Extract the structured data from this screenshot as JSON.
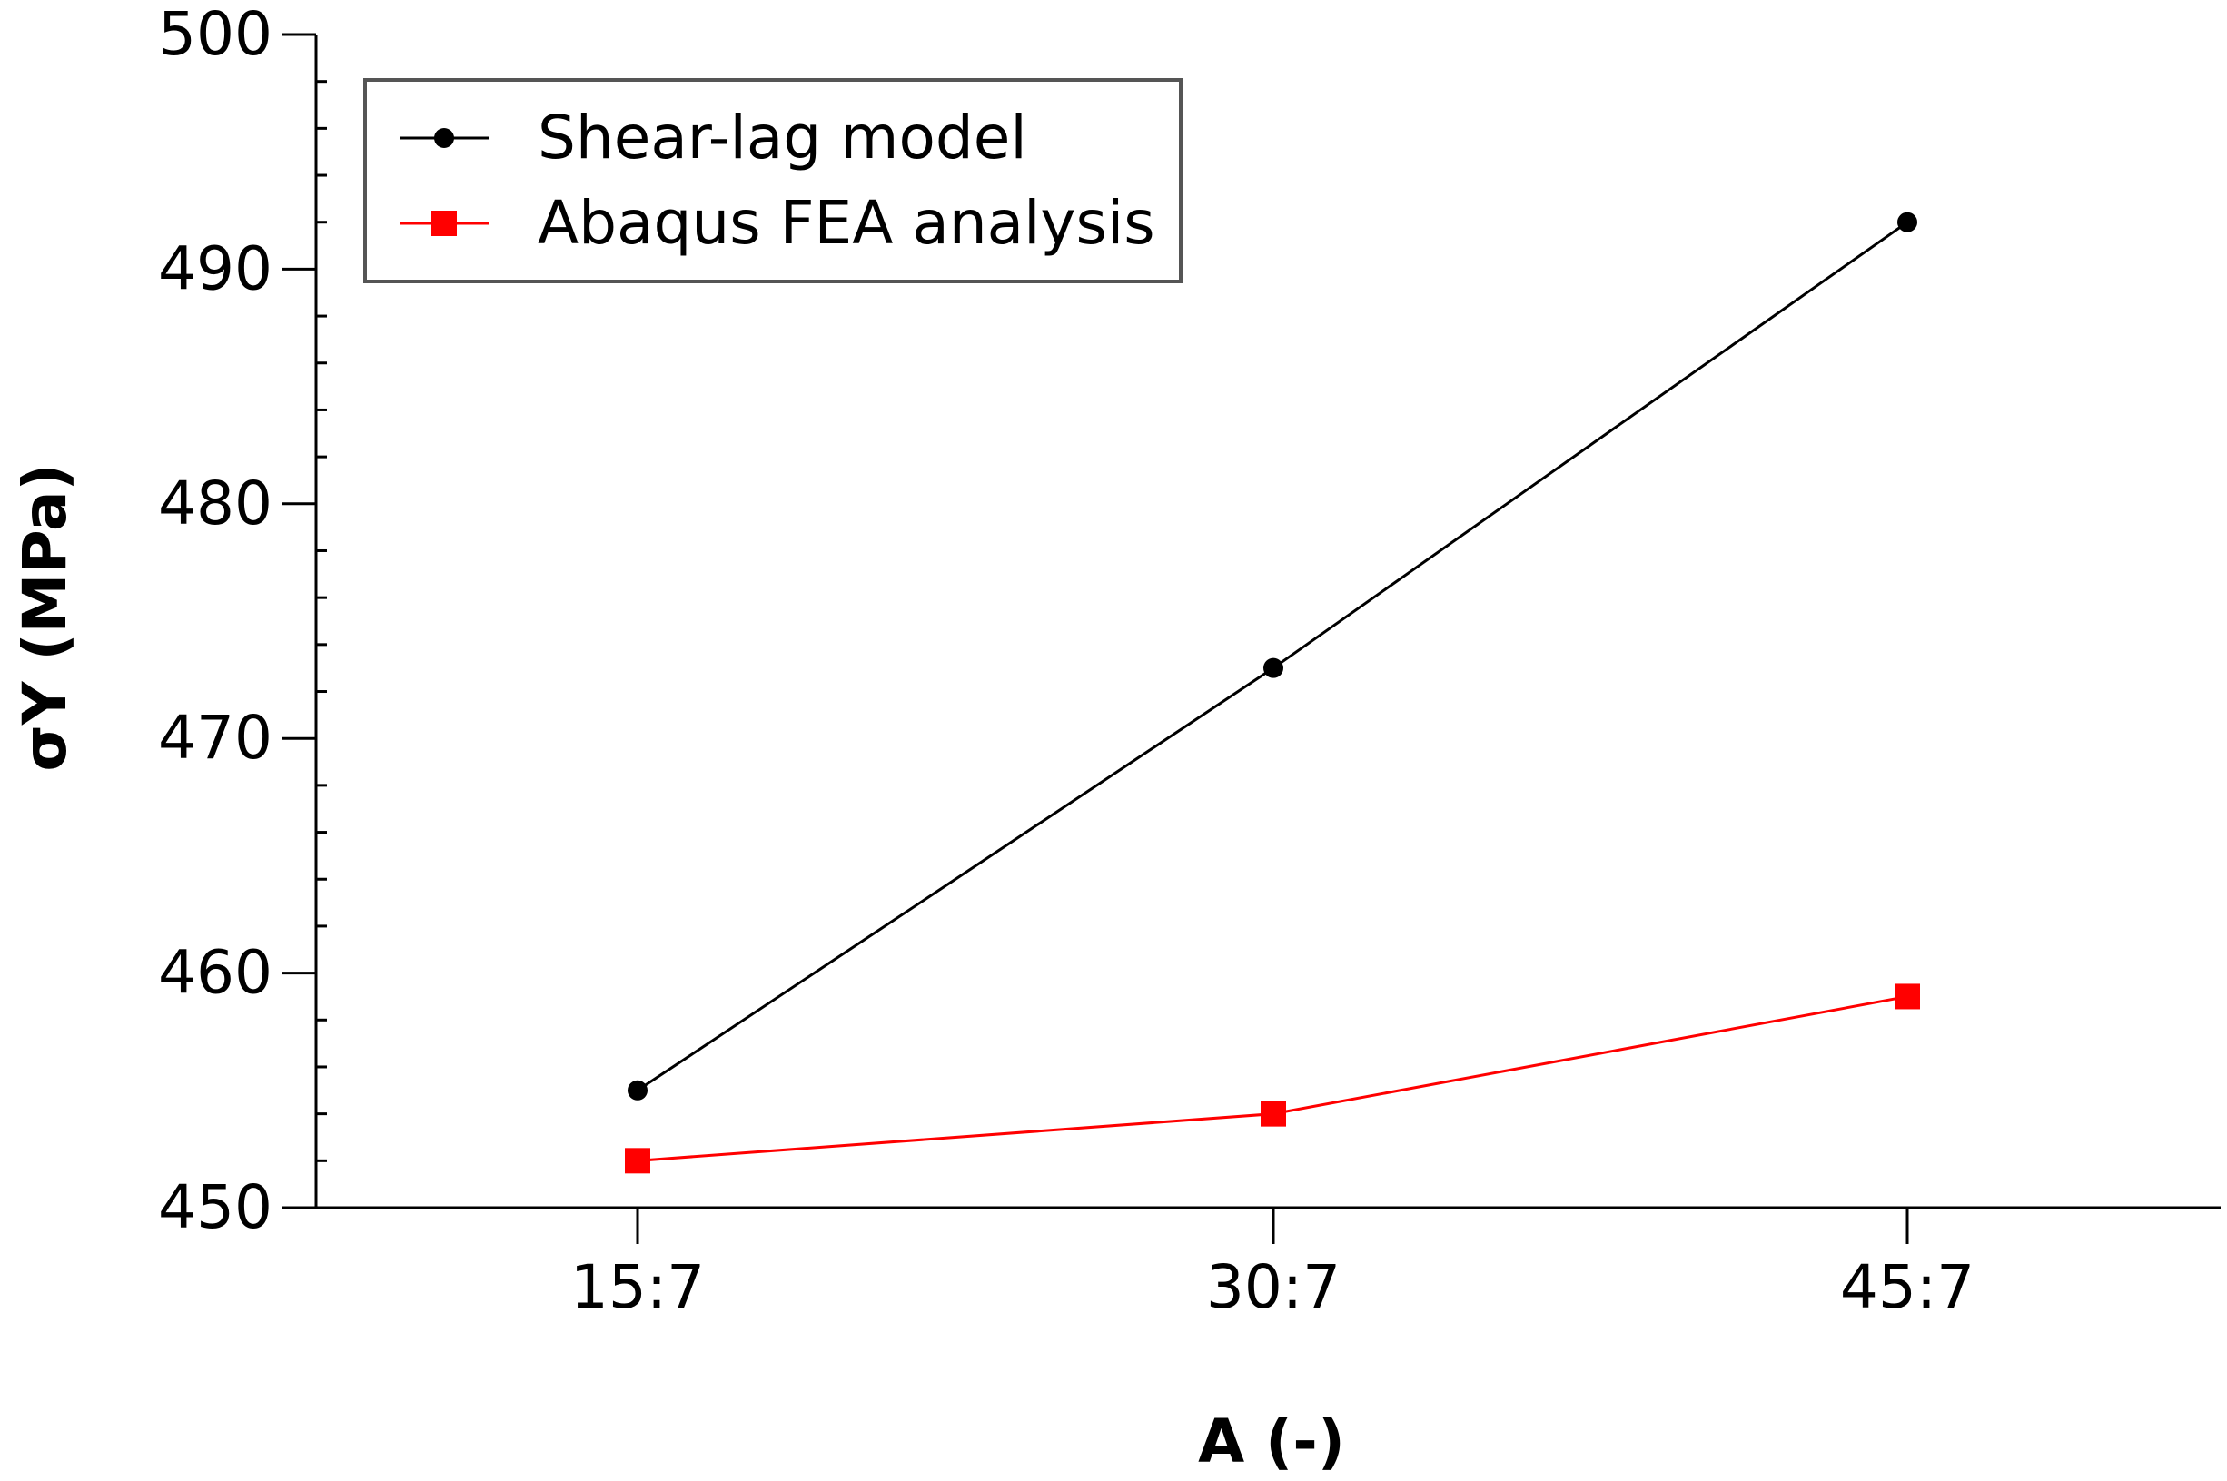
{
  "chart_data": {
    "type": "line",
    "title": "",
    "xlabel": "A (-)",
    "ylabel": "σY (MPa)",
    "categories": [
      "15:7",
      "30:7",
      "45:7"
    ],
    "ylim": [
      450,
      500
    ],
    "yticks": [
      "450",
      "460",
      "470",
      "480",
      "490",
      "500"
    ],
    "grid": false,
    "legend_position": "top-left",
    "series": [
      {
        "name": "Shear-lag model",
        "values": [
          455,
          473,
          492
        ],
        "color": "#000000",
        "marker": "circle"
      },
      {
        "name": "Abaqus FEA analysis",
        "values": [
          452,
          454,
          459
        ],
        "color": "#ff0000",
        "marker": "square"
      }
    ]
  }
}
